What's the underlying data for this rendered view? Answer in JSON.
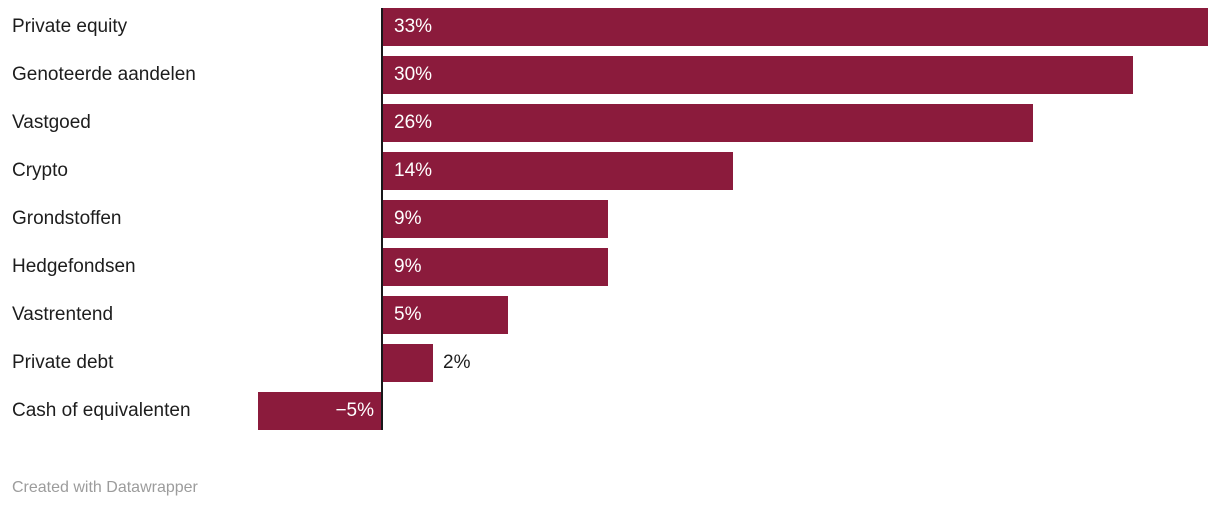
{
  "chart_data": {
    "type": "bar",
    "orientation": "horizontal",
    "title": "",
    "categories": [
      "Private equity",
      "Genoteerde aandelen",
      "Vastgoed",
      "Crypto",
      "Grondstoffen",
      "Hedgefondsen",
      "Vastrentend",
      "Private debt",
      "Cash of equivalenten"
    ],
    "values": [
      33,
      30,
      26,
      14,
      9,
      9,
      5,
      2,
      -5
    ],
    "value_labels": [
      "33%",
      "30%",
      "26%",
      "14%",
      "9%",
      "9%",
      "5%",
      "2%",
      "−5%"
    ],
    "xlim": [
      -5,
      33
    ],
    "grid": false,
    "legend": false,
    "bar_color": "#8b1b3c",
    "axis_color": "#18181a",
    "category_label_color": "#1d1d1d",
    "value_label_inside_color": "#ffffff",
    "value_label_outside_color": "#1d1d1d"
  },
  "footer": {
    "credit": "Created with Datawrapper"
  }
}
